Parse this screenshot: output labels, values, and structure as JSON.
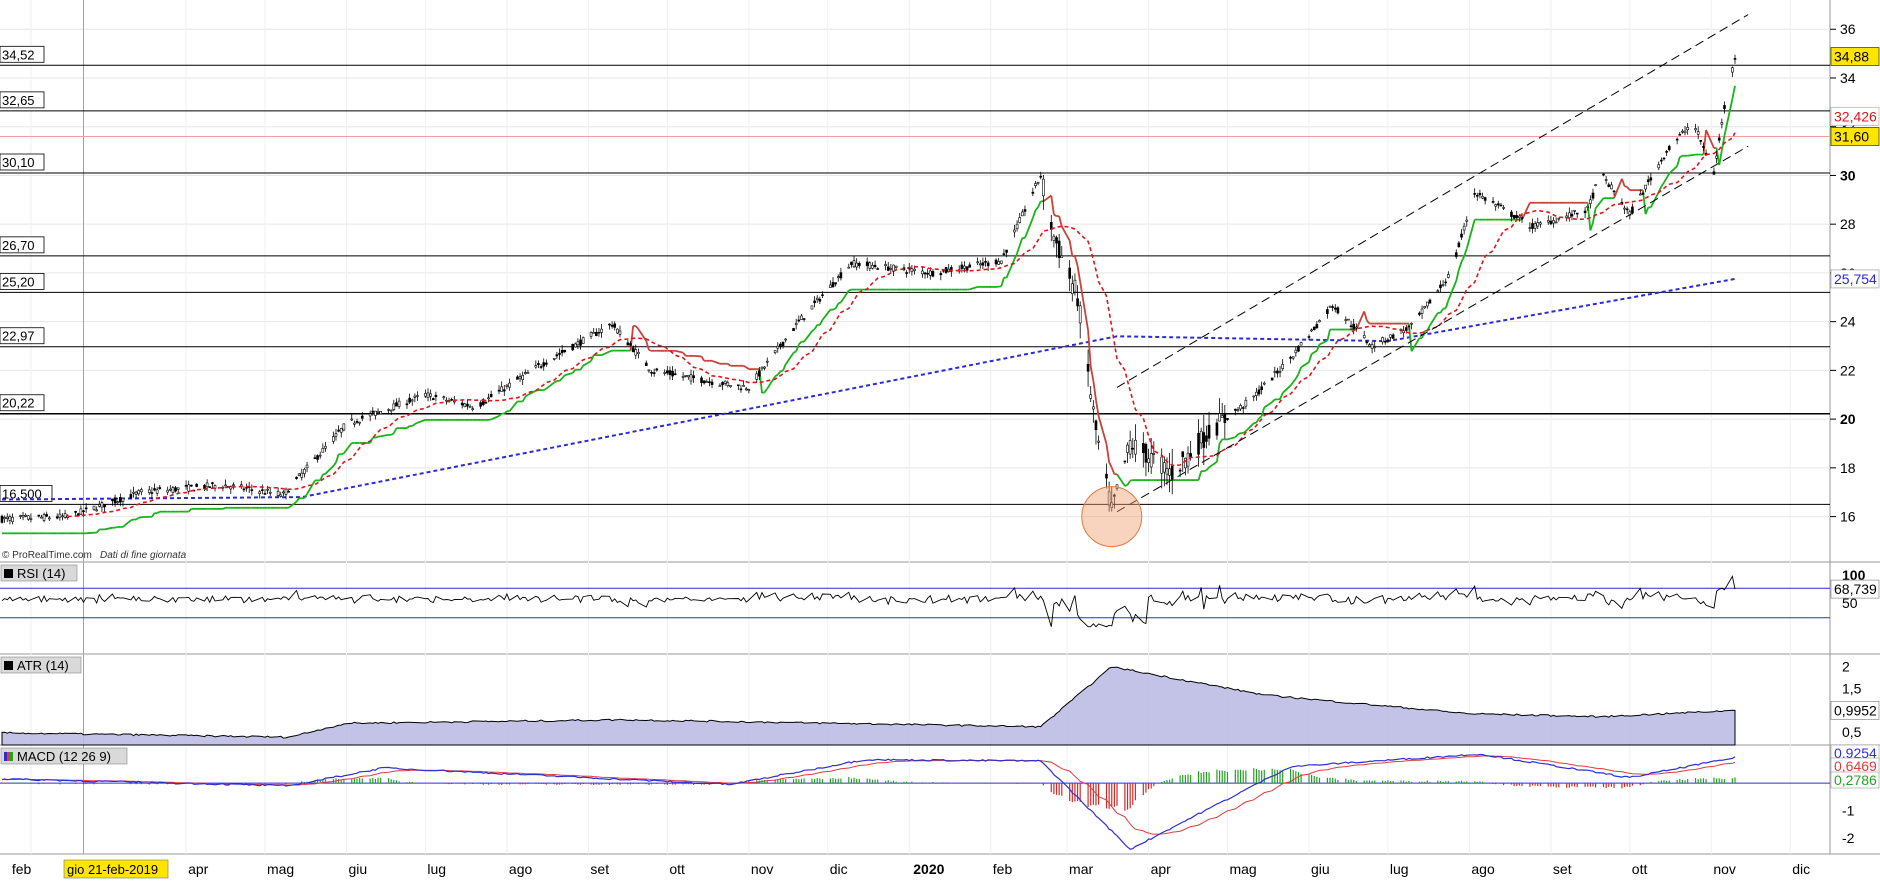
{
  "app": {
    "watermark": "© ProRealTime.com",
    "watermark_note": "Dati di fine giornata",
    "cursor_date": "gio 21-feb-2019"
  },
  "colors": {
    "grid": "#e6e6e6",
    "sar_red": "#c8423a",
    "sar_green": "#19b319",
    "ma_blue": "#2a2adb",
    "ma_red": "#e0151a",
    "atr_fill": "#b9b9e3",
    "macd_blue": "#2d2dd8",
    "macd_red": "#e03a3a",
    "macd_hist_pos": "#21a321",
    "macd_hist_neg": "#d22a2a",
    "circle": "#f0a070",
    "price_tag_yellow": "#ffe500"
  },
  "chart_data": [
    {
      "type": "candlestick",
      "panel": "price",
      "title": "",
      "xlabel": "",
      "ylabel": "",
      "x_ticks": [
        "feb",
        "apr",
        "mag",
        "giu",
        "lug",
        "ago",
        "set",
        "ott",
        "nov",
        "dic",
        "2020",
        "feb",
        "mar",
        "apr",
        "mag",
        "giu",
        "lug",
        "ago",
        "set",
        "ott",
        "nov",
        "dic"
      ],
      "y_ticks": [
        "16",
        "18",
        "20",
        "22",
        "24",
        "26",
        "28",
        "30",
        "32",
        "34",
        "36"
      ],
      "ylim": [
        14.3,
        37.2
      ],
      "key_anchors": [
        {
          "date": "2019-01-21",
          "price": 15.9
        },
        {
          "date": "2019-02-15",
          "price": 16.0
        },
        {
          "date": "2019-03-15",
          "price": 17.0
        },
        {
          "date": "2019-04-15",
          "price": 17.3
        },
        {
          "date": "2019-05-08",
          "price": 16.9
        },
        {
          "date": "2019-06-01",
          "price": 19.8
        },
        {
          "date": "2019-07-01",
          "price": 21.0
        },
        {
          "date": "2019-07-20",
          "price": 20.5
        },
        {
          "date": "2019-08-15",
          "price": 22.3
        },
        {
          "date": "2019-09-10",
          "price": 23.9
        },
        {
          "date": "2019-09-25",
          "price": 22.0
        },
        {
          "date": "2019-10-20",
          "price": 21.5
        },
        {
          "date": "2019-11-01",
          "price": 21.3
        },
        {
          "date": "2019-11-20",
          "price": 24.0
        },
        {
          "date": "2019-12-10",
          "price": 26.4
        },
        {
          "date": "2020-01-10",
          "price": 26.0
        },
        {
          "date": "2020-02-05",
          "price": 26.5
        },
        {
          "date": "2020-02-20",
          "price": 30.0
        },
        {
          "date": "2020-02-25",
          "price": 27.5
        },
        {
          "date": "2020-03-05",
          "price": 25.0
        },
        {
          "date": "2020-03-12",
          "price": 19.5
        },
        {
          "date": "2020-03-18",
          "price": 16.2
        },
        {
          "date": "2020-03-25",
          "price": 19.0
        },
        {
          "date": "2020-04-10",
          "price": 17.8
        },
        {
          "date": "2020-04-25",
          "price": 19.6
        },
        {
          "date": "2020-05-10",
          "price": 20.8
        },
        {
          "date": "2020-05-25",
          "price": 22.5
        },
        {
          "date": "2020-06-10",
          "price": 24.7
        },
        {
          "date": "2020-06-25",
          "price": 23.0
        },
        {
          "date": "2020-07-10",
          "price": 23.8
        },
        {
          "date": "2020-07-25",
          "price": 26.0
        },
        {
          "date": "2020-08-03",
          "price": 29.3
        },
        {
          "date": "2020-08-25",
          "price": 27.9
        },
        {
          "date": "2020-09-15",
          "price": 28.6
        },
        {
          "date": "2020-09-20",
          "price": 30.1
        },
        {
          "date": "2020-10-01",
          "price": 28.4
        },
        {
          "date": "2020-10-15",
          "price": 31.0
        },
        {
          "date": "2020-10-25",
          "price": 32.2
        },
        {
          "date": "2020-11-02",
          "price": 30.1
        },
        {
          "date": "2020-11-06",
          "price": 32.8
        },
        {
          "date": "2020-11-10",
          "price": 34.88
        }
      ],
      "last_price": "34,88",
      "horizontal_levels": [
        {
          "value": 34.52,
          "label": "34,52"
        },
        {
          "value": 32.65,
          "label": "32,65"
        },
        {
          "value": 30.1,
          "label": "30,10"
        },
        {
          "value": 26.7,
          "label": "26,70"
        },
        {
          "value": 25.2,
          "label": "25,20"
        },
        {
          "value": 22.97,
          "label": "22,97"
        },
        {
          "value": 20.22,
          "label": "20,22"
        },
        {
          "value": 16.5,
          "label": "16,500"
        }
      ],
      "right_tags": [
        {
          "value": 34.88,
          "label": "34,88",
          "style": "yellow"
        },
        {
          "value": 32.426,
          "label": "32,426",
          "style": "red"
        },
        {
          "value": 31.6,
          "label": "31,60",
          "style": "yellow"
        },
        {
          "value": 25.754,
          "label": "25,754",
          "style": "blue"
        }
      ],
      "overlays": [
        {
          "name": "",
          "kind": "ma_long_blue",
          "start": 16.7,
          "end": 25.754
        },
        {
          "name": "",
          "kind": "ma_short_red",
          "last": 32.426
        },
        {
          "name": "",
          "kind": "trailing_stop",
          "color": "green_red"
        }
      ],
      "channel_lines": [
        {
          "from": {
            "date": "2020-03-20",
            "price": 21.3
          },
          "to": {
            "date": "2020-11-15",
            "price": 36.6
          }
        },
        {
          "from": {
            "date": "2020-03-20",
            "price": 16.2
          },
          "to": {
            "date": "2020-11-15",
            "price": 31.2
          }
        }
      ],
      "highlight_circle": {
        "date": "2020-03-18",
        "price": 16.0
      }
    },
    {
      "type": "line",
      "panel": "rsi",
      "legend": "RSI (14)",
      "y_ticks": [
        "100",
        "50"
      ],
      "ylim": [
        0,
        100
      ],
      "levels": [
        70,
        30
      ],
      "last_value": 68.739,
      "last_label": "68,739"
    },
    {
      "type": "area",
      "panel": "atr",
      "legend": "ATR (14)",
      "y_ticks": [
        "2",
        "1,5",
        "0,5"
      ],
      "ylim": [
        0.2,
        2.2
      ],
      "key_anchors": [
        {
          "date": "2019-01-21",
          "value": 0.48
        },
        {
          "date": "2019-05-10",
          "value": 0.38
        },
        {
          "date": "2019-06-01",
          "value": 0.7
        },
        {
          "date": "2019-09-15",
          "value": 0.78
        },
        {
          "date": "2020-02-20",
          "value": 0.62
        },
        {
          "date": "2020-03-18",
          "value": 2.0
        },
        {
          "date": "2020-05-15",
          "value": 1.35
        },
        {
          "date": "2020-08-01",
          "value": 0.92
        },
        {
          "date": "2020-09-20",
          "value": 0.85
        },
        {
          "date": "2020-11-10",
          "value": 0.9952
        }
      ],
      "last_value": 0.9952,
      "last_label": "0,9952"
    },
    {
      "type": "line",
      "panel": "macd",
      "legend": "MACD (12 26 9)",
      "y_ticks": [
        "-1",
        "-2"
      ],
      "ylim": [
        -2.5,
        1.2
      ],
      "key_anchors": [
        {
          "date": "2019-01-21",
          "value": 0.15
        },
        {
          "date": "2019-05-10",
          "value": -0.1
        },
        {
          "date": "2019-06-15",
          "value": 0.55
        },
        {
          "date": "2019-10-25",
          "value": -0.05
        },
        {
          "date": "2019-12-15",
          "value": 0.85
        },
        {
          "date": "2020-02-20",
          "value": 0.8
        },
        {
          "date": "2020-03-25",
          "value": -2.4
        },
        {
          "date": "2020-05-25",
          "value": 0.6
        },
        {
          "date": "2020-08-05",
          "value": 1.05
        },
        {
          "date": "2020-10-01",
          "value": 0.2
        },
        {
          "date": "2020-11-10",
          "value": 0.9254
        }
      ],
      "right_labels": [
        "0,9254",
        "0,6469",
        "0,2786"
      ]
    }
  ]
}
